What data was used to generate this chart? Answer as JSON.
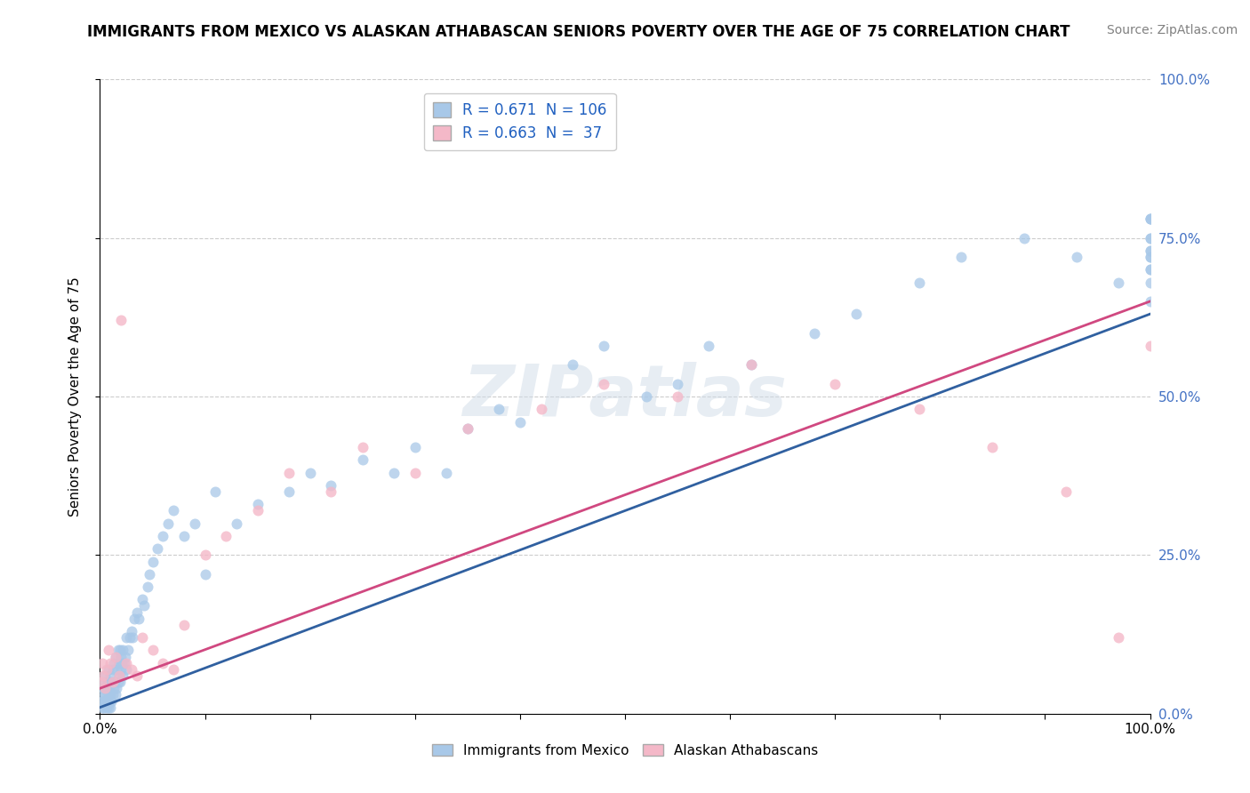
{
  "title": "IMMIGRANTS FROM MEXICO VS ALASKAN ATHABASCAN SENIORS POVERTY OVER THE AGE OF 75 CORRELATION CHART",
  "source": "Source: ZipAtlas.com",
  "ylabel": "Seniors Poverty Over the Age of 75",
  "xlim": [
    0,
    1
  ],
  "ylim": [
    0,
    1
  ],
  "blue_color": "#a8c8e8",
  "pink_color": "#f4b8c8",
  "blue_line_color": "#3060a0",
  "pink_line_color": "#d04880",
  "right_tick_color": "#4472C4",
  "legend_R1": "0.671",
  "legend_N1": "106",
  "legend_R2": "0.663",
  "legend_N2": " 37",
  "legend_label1": "Immigrants from Mexico",
  "legend_label2": "Alaskan Athabascans",
  "background_color": "#ffffff",
  "grid_color": "#cccccc",
  "title_fontsize": 12,
  "source_fontsize": 10,
  "axis_fontsize": 11,
  "watermark": "ZIPatlas",
  "blue_line_start_y": 0.01,
  "blue_line_end_y": 0.63,
  "pink_line_start_y": 0.04,
  "pink_line_end_y": 0.65,
  "blue_scatter": {
    "x": [
      0.001,
      0.002,
      0.002,
      0.003,
      0.003,
      0.004,
      0.004,
      0.005,
      0.005,
      0.005,
      0.006,
      0.006,
      0.007,
      0.007,
      0.008,
      0.008,
      0.008,
      0.009,
      0.009,
      0.01,
      0.01,
      0.01,
      0.011,
      0.011,
      0.012,
      0.012,
      0.013,
      0.013,
      0.014,
      0.015,
      0.015,
      0.016,
      0.016,
      0.017,
      0.017,
      0.018,
      0.018,
      0.019,
      0.019,
      0.02,
      0.02,
      0.021,
      0.022,
      0.022,
      0.023,
      0.024,
      0.025,
      0.025,
      0.027,
      0.028,
      0.03,
      0.031,
      0.033,
      0.035,
      0.037,
      0.04,
      0.042,
      0.045,
      0.047,
      0.05,
      0.055,
      0.06,
      0.065,
      0.07,
      0.08,
      0.09,
      0.1,
      0.11,
      0.13,
      0.15,
      0.18,
      0.2,
      0.22,
      0.25,
      0.28,
      0.3,
      0.33,
      0.35,
      0.38,
      0.4,
      0.45,
      0.48,
      0.52,
      0.55,
      0.58,
      0.62,
      0.68,
      0.72,
      0.78,
      0.82,
      0.88,
      0.93,
      0.97,
      1.0,
      1.0,
      1.0,
      1.0,
      1.0,
      1.0,
      1.0,
      1.0,
      1.0,
      1.0,
      1.0,
      1.0,
      1.0
    ],
    "y": [
      0.02,
      0.01,
      0.03,
      0.02,
      0.04,
      0.01,
      0.05,
      0.02,
      0.03,
      0.06,
      0.01,
      0.04,
      0.02,
      0.05,
      0.01,
      0.03,
      0.07,
      0.02,
      0.04,
      0.01,
      0.03,
      0.06,
      0.02,
      0.05,
      0.03,
      0.07,
      0.04,
      0.08,
      0.05,
      0.03,
      0.09,
      0.04,
      0.07,
      0.05,
      0.1,
      0.06,
      0.08,
      0.05,
      0.1,
      0.07,
      0.09,
      0.08,
      0.06,
      0.1,
      0.08,
      0.09,
      0.07,
      0.12,
      0.1,
      0.12,
      0.13,
      0.12,
      0.15,
      0.16,
      0.15,
      0.18,
      0.17,
      0.2,
      0.22,
      0.24,
      0.26,
      0.28,
      0.3,
      0.32,
      0.28,
      0.3,
      0.22,
      0.35,
      0.3,
      0.33,
      0.35,
      0.38,
      0.36,
      0.4,
      0.38,
      0.42,
      0.38,
      0.45,
      0.48,
      0.46,
      0.55,
      0.58,
      0.5,
      0.52,
      0.58,
      0.55,
      0.6,
      0.63,
      0.68,
      0.72,
      0.75,
      0.72,
      0.68,
      0.75,
      0.72,
      0.78,
      0.7,
      0.68,
      0.73,
      0.78,
      0.72,
      0.7,
      0.75,
      0.65,
      0.73,
      0.78
    ]
  },
  "pink_scatter": {
    "x": [
      0.001,
      0.002,
      0.003,
      0.005,
      0.006,
      0.008,
      0.01,
      0.012,
      0.015,
      0.018,
      0.02,
      0.025,
      0.03,
      0.035,
      0.04,
      0.05,
      0.06,
      0.07,
      0.08,
      0.1,
      0.12,
      0.15,
      0.18,
      0.22,
      0.25,
      0.3,
      0.35,
      0.42,
      0.48,
      0.55,
      0.62,
      0.7,
      0.78,
      0.85,
      0.92,
      0.97,
      1.0
    ],
    "y": [
      0.05,
      0.08,
      0.06,
      0.04,
      0.07,
      0.1,
      0.08,
      0.05,
      0.09,
      0.06,
      0.62,
      0.08,
      0.07,
      0.06,
      0.12,
      0.1,
      0.08,
      0.07,
      0.14,
      0.25,
      0.28,
      0.32,
      0.38,
      0.35,
      0.42,
      0.38,
      0.45,
      0.48,
      0.52,
      0.5,
      0.55,
      0.52,
      0.48,
      0.42,
      0.35,
      0.12,
      0.58
    ]
  }
}
